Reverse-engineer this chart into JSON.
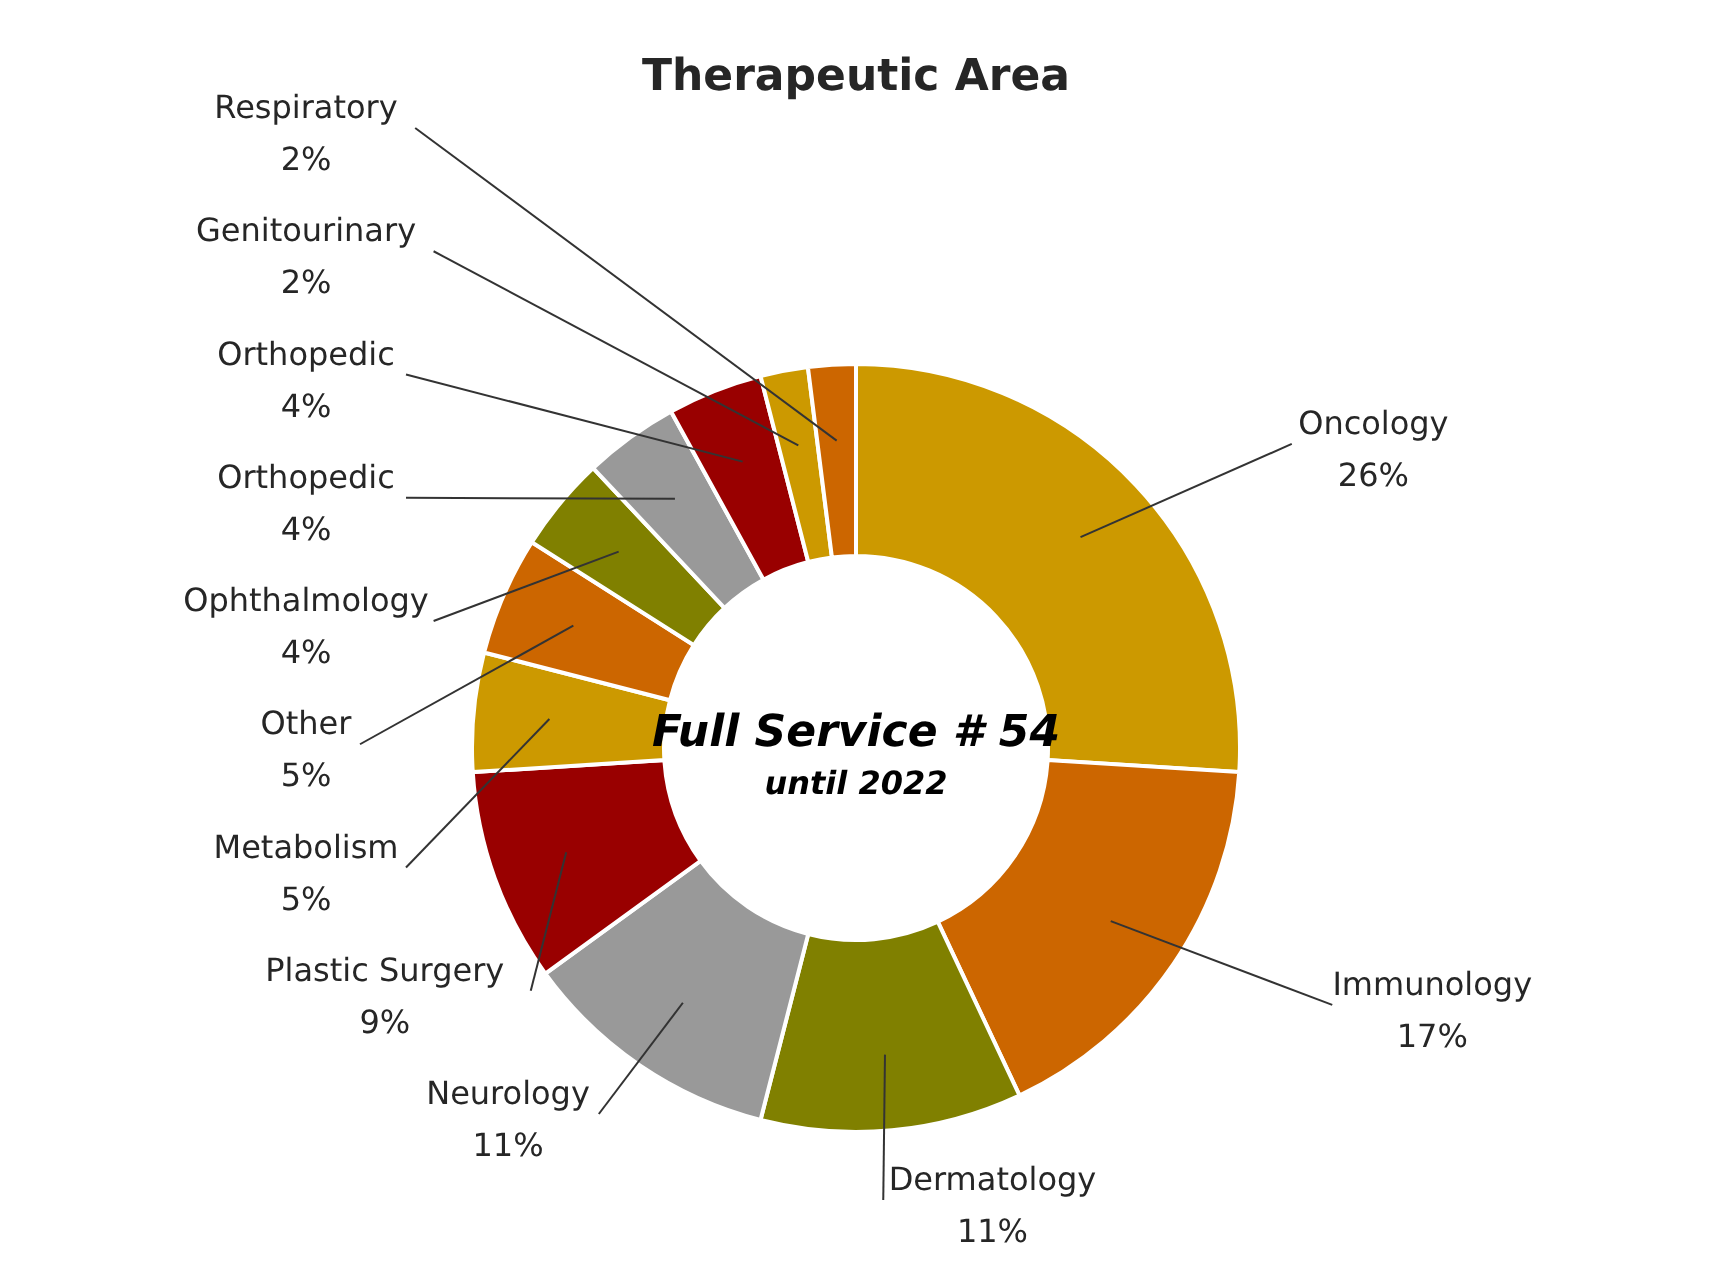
{
  "chart_data": {
    "type": "donut",
    "title": "Therapeutic Area",
    "categories": [
      "Oncology",
      "Immunology",
      "Dermatology",
      "Neurology",
      "Plastic Surgery",
      "Metabolism",
      "Other",
      "Ophthalmology",
      "Orthopedic",
      "Orthopedic",
      "Genitourinary",
      "Respiratory"
    ],
    "values": [
      26,
      17,
      11,
      11,
      9,
      5,
      5,
      4,
      4,
      4,
      2,
      2
    ],
    "value_labels": [
      "26%",
      "17%",
      "11%",
      "11%",
      "9%",
      "5%",
      "5%",
      "4%",
      "4%",
      "4%",
      "2%",
      "2%"
    ],
    "colors": [
      "#cc9900",
      "#cc6600",
      "#808000",
      "#999999",
      "#990000",
      "#cc9900",
      "#cc6600",
      "#808000",
      "#999999",
      "#990000",
      "#cc9900",
      "#cc6600"
    ],
    "annotations": [
      "Full Service # 54",
      "until 2022"
    ],
    "legend": false
  }
}
